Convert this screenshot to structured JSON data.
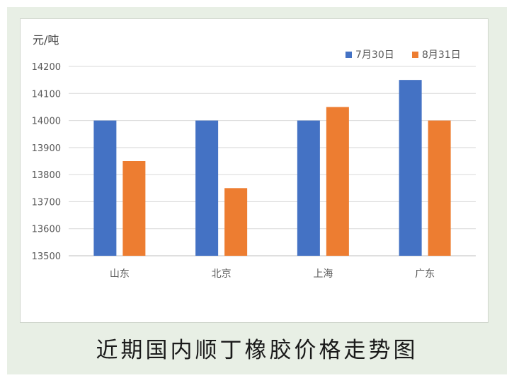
{
  "chart_data": {
    "type": "bar",
    "title": "近期国内顺丁橡胶价格走势图",
    "ylabel": "元/吨",
    "xlabel": "",
    "categories": [
      "山东",
      "北京",
      "上海",
      "广东"
    ],
    "series": [
      {
        "name": "7月30日",
        "color": "#4472c4",
        "values": [
          14000,
          14000,
          14000,
          14150
        ]
      },
      {
        "name": "8月31日",
        "color": "#ed7d31",
        "values": [
          13850,
          13750,
          14050,
          14000
        ]
      }
    ],
    "ylim": [
      13500,
      14200
    ],
    "yticks": [
      13500,
      13600,
      13700,
      13800,
      13900,
      14000,
      14100,
      14200
    ],
    "grid": true,
    "legend_position": "top-right"
  }
}
